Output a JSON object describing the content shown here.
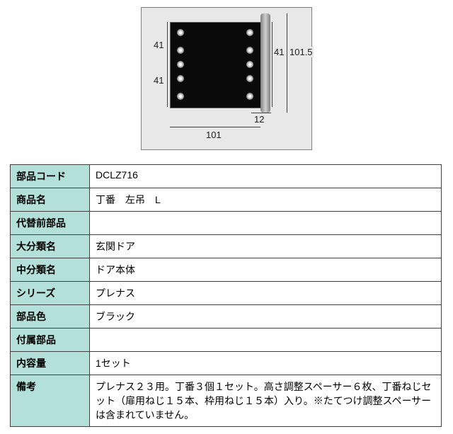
{
  "diagram": {
    "dims": {
      "left_upper": "41",
      "left_lower": "41",
      "right_inner": "41",
      "right_outer": "101.5",
      "bottom_gap": "12",
      "bottom_width": "101"
    },
    "colors": {
      "bg": "#e8e8e8",
      "border": "#808080",
      "hinge": "#0a0a0a",
      "text": "#202020"
    }
  },
  "table": {
    "header_bg": "#b3e0d8",
    "cell_bg": "#ffffff",
    "border": "#404040",
    "rows": [
      {
        "label": "部品コード",
        "value": "DCLZ716"
      },
      {
        "label": "商品名",
        "value": "丁番　左吊　L"
      },
      {
        "label": "代替前部品",
        "value": ""
      },
      {
        "label": "大分類名",
        "value": "玄関ドア"
      },
      {
        "label": "中分類名",
        "value": "ドア本体"
      },
      {
        "label": "シリーズ",
        "value": "プレナス"
      },
      {
        "label": "部品色",
        "value": "ブラック"
      },
      {
        "label": "付属部品",
        "value": ""
      },
      {
        "label": "内容量",
        "value": "1セット"
      },
      {
        "label": "備考",
        "value": "プレナス２３用。丁番３個１セット。高さ調整スペーサー６枚、丁番ねじセット（扉用ねじ１５本、枠用ねじ１５本）入り。※たてつけ調整スペーサーは含まれていません。"
      }
    ]
  }
}
